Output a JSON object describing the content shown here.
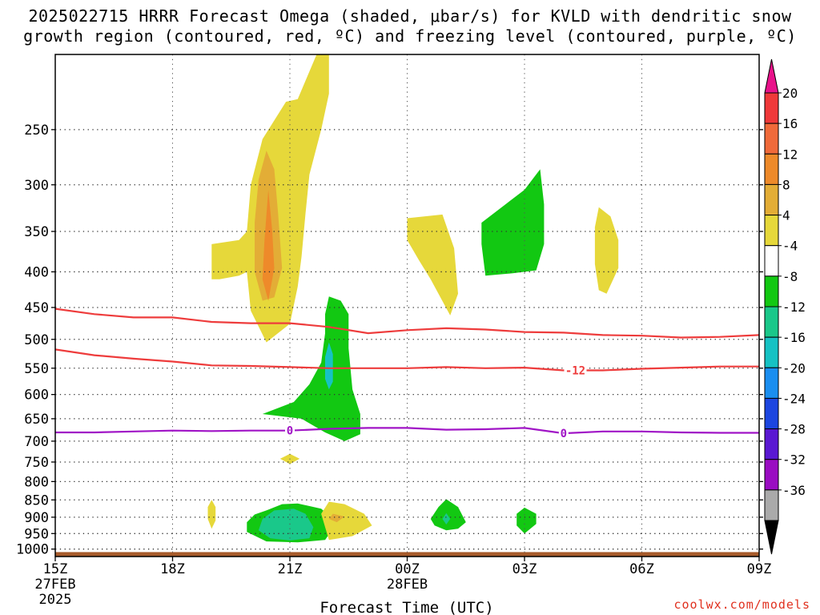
{
  "title_line1": "2025022715 HRRR Forecast Omega (shaded, μbar/s) for KVLD with dendritic snow",
  "title_line2": "growth region (contoured, red, ºC) and freezing level (contoured, purple, ºC)",
  "credit": "coolwx.com/models",
  "chart_data": {
    "type": "area",
    "xlabel": "Forecast Time (UTC)",
    "ylabel": "",
    "x_range": [
      "2025-02-27T15:00Z",
      "2025-02-28T09:00Z"
    ],
    "y_scale": "log",
    "y_range": [
      1025,
      195
    ],
    "x_ticks": [
      {
        "t": 0,
        "label": "15Z",
        "sub1": "27FEB",
        "sub2": "2025"
      },
      {
        "t": 3,
        "label": "18Z",
        "sub1": "",
        "sub2": ""
      },
      {
        "t": 6,
        "label": "21Z",
        "sub1": "",
        "sub2": ""
      },
      {
        "t": 9,
        "label": "00Z",
        "sub1": "28FEB",
        "sub2": ""
      },
      {
        "t": 12,
        "label": "03Z",
        "sub1": "",
        "sub2": ""
      },
      {
        "t": 15,
        "label": "06Z",
        "sub1": "",
        "sub2": ""
      },
      {
        "t": 18,
        "label": "09Z",
        "sub1": "",
        "sub2": ""
      }
    ],
    "y_ticks": [
      250,
      300,
      350,
      400,
      450,
      500,
      550,
      600,
      650,
      700,
      750,
      800,
      850,
      900,
      950,
      1000
    ],
    "grid": true,
    "colorbar": {
      "labels": [
        "20",
        "16",
        "12",
        "8",
        "4",
        "-4",
        "-8",
        "-12",
        "-16",
        "-20",
        "-24",
        "-28",
        "-32",
        "-36"
      ],
      "colors": [
        "#e8128a",
        "#f0393a",
        "#f06a3a",
        "#ee8a2a",
        "#e3ad36",
        "#e6d83a",
        "#ffffff",
        "#12c812",
        "#1ac88a",
        "#16c2c4",
        "#1a8ef0",
        "#1c46e0",
        "#5a18d2",
        "#9a0cc2",
        "#aaaaaa",
        "#000000"
      ]
    },
    "shaded": [
      {
        "value": 4,
        "color": "#e6d83a",
        "points": [
          [
            6.7,
            194
          ],
          [
            7.0,
            194
          ],
          [
            7.0,
            222
          ],
          [
            6.8,
            250
          ],
          [
            6.5,
            290
          ],
          [
            6.4,
            330
          ],
          [
            6.3,
            380
          ],
          [
            6.2,
            420
          ],
          [
            6.0,
            475
          ],
          [
            5.4,
            505
          ],
          [
            5.0,
            455
          ],
          [
            4.9,
            400
          ],
          [
            4.7,
            405
          ],
          [
            4.2,
            410
          ],
          [
            4.0,
            410
          ],
          [
            4.0,
            365
          ],
          [
            4.7,
            360
          ],
          [
            4.9,
            350
          ],
          [
            5.0,
            300
          ],
          [
            5.3,
            258
          ],
          [
            5.9,
            228
          ],
          [
            6.2,
            226
          ]
        ]
      },
      {
        "value": 4,
        "color": "#e6d83a",
        "points": [
          [
            9.0,
            335
          ],
          [
            9.9,
            331
          ],
          [
            10.2,
            370
          ],
          [
            10.3,
            430
          ],
          [
            10.1,
            462
          ],
          [
            9.6,
            410
          ],
          [
            9.3,
            385
          ],
          [
            9.0,
            360
          ]
        ]
      },
      {
        "value": 4,
        "color": "#e6d83a",
        "points": [
          [
            13.9,
            323
          ],
          [
            14.2,
            333
          ],
          [
            14.4,
            360
          ],
          [
            14.4,
            395
          ],
          [
            14.1,
            430
          ],
          [
            13.9,
            425
          ],
          [
            13.8,
            390
          ],
          [
            13.8,
            345
          ]
        ]
      },
      {
        "value": 8,
        "color": "#e3ad36",
        "points": [
          [
            5.4,
            268
          ],
          [
            5.6,
            285
          ],
          [
            5.7,
            330
          ],
          [
            5.8,
            395
          ],
          [
            5.6,
            435
          ],
          [
            5.3,
            440
          ],
          [
            5.1,
            400
          ],
          [
            5.1,
            340
          ],
          [
            5.2,
            295
          ]
        ]
      },
      {
        "value": 12,
        "color": "#ee8a2a",
        "points": [
          [
            5.45,
            305
          ],
          [
            5.55,
            350
          ],
          [
            5.6,
            395
          ],
          [
            5.45,
            440
          ],
          [
            5.3,
            410
          ],
          [
            5.35,
            360
          ]
        ]
      },
      {
        "value": -4,
        "color": "#12c812",
        "points": [
          [
            12.0,
            305
          ],
          [
            12.4,
            285
          ],
          [
            12.5,
            320
          ],
          [
            12.5,
            365
          ],
          [
            12.3,
            398
          ],
          [
            11.7,
            402
          ],
          [
            11.0,
            405
          ],
          [
            10.9,
            365
          ],
          [
            10.9,
            340
          ]
        ]
      },
      {
        "value": -4,
        "color": "#12c812",
        "points": [
          [
            7.0,
            434
          ],
          [
            7.3,
            440
          ],
          [
            7.5,
            460
          ],
          [
            7.5,
            515
          ],
          [
            7.6,
            590
          ],
          [
            7.8,
            640
          ],
          [
            7.8,
            684
          ],
          [
            7.4,
            700
          ],
          [
            6.9,
            680
          ],
          [
            6.3,
            650
          ],
          [
            5.3,
            640
          ],
          [
            6.1,
            615
          ],
          [
            6.5,
            580
          ],
          [
            6.8,
            540
          ],
          [
            6.9,
            490
          ],
          [
            6.9,
            460
          ]
        ]
      },
      {
        "value": -8,
        "color": "#16c2c4",
        "points": [
          [
            7.0,
            505
          ],
          [
            7.1,
            525
          ],
          [
            7.1,
            575
          ],
          [
            7.0,
            590
          ],
          [
            6.9,
            570
          ],
          [
            6.9,
            530
          ]
        ]
      },
      {
        "value": -4,
        "color": "#12c812",
        "points": [
          [
            5.4,
            880
          ],
          [
            5.8,
            862
          ],
          [
            6.2,
            860
          ],
          [
            6.8,
            875
          ],
          [
            7.1,
            905
          ],
          [
            7.1,
            935
          ],
          [
            6.9,
            970
          ],
          [
            6.2,
            978
          ],
          [
            5.4,
            975
          ],
          [
            4.9,
            945
          ],
          [
            4.9,
            915
          ],
          [
            5.1,
            892
          ]
        ]
      },
      {
        "value": -8,
        "color": "#1ac88a",
        "points": [
          [
            5.6,
            880
          ],
          [
            6.1,
            875
          ],
          [
            6.4,
            890
          ],
          [
            6.6,
            930
          ],
          [
            6.5,
            965
          ],
          [
            6.0,
            972
          ],
          [
            5.5,
            965
          ],
          [
            5.2,
            940
          ],
          [
            5.3,
            905
          ]
        ]
      },
      {
        "value": 4,
        "color": "#e6d83a",
        "points": [
          [
            7.0,
            855
          ],
          [
            7.4,
            862
          ],
          [
            7.9,
            890
          ],
          [
            8.1,
            925
          ],
          [
            7.6,
            958
          ],
          [
            7.0,
            970
          ],
          [
            6.9,
            930
          ],
          [
            6.8,
            890
          ]
        ]
      },
      {
        "value": 8,
        "color": "#e3ad36",
        "points": [
          [
            7.1,
            890
          ],
          [
            7.4,
            898
          ],
          [
            7.2,
            915
          ],
          [
            7.0,
            905
          ]
        ]
      },
      {
        "value": 4,
        "color": "#e6d83a",
        "points": [
          [
            4.0,
            850
          ],
          [
            4.1,
            870
          ],
          [
            4.1,
            910
          ],
          [
            4.0,
            935
          ],
          [
            3.9,
            905
          ],
          [
            3.9,
            870
          ]
        ]
      },
      {
        "value": 4,
        "color": "#e6d83a",
        "points": [
          [
            6.0,
            730
          ],
          [
            6.25,
            742
          ],
          [
            6.0,
            755
          ],
          [
            5.75,
            742
          ]
        ]
      },
      {
        "value": -4,
        "color": "#12c812",
        "points": [
          [
            10.0,
            848
          ],
          [
            10.3,
            870
          ],
          [
            10.5,
            915
          ],
          [
            10.3,
            935
          ],
          [
            10.0,
            940
          ],
          [
            9.7,
            925
          ],
          [
            9.6,
            905
          ],
          [
            9.8,
            870
          ]
        ]
      },
      {
        "value": -8,
        "color": "#1ac88a",
        "points": [
          [
            10.0,
            888
          ],
          [
            10.1,
            905
          ],
          [
            10.0,
            922
          ],
          [
            9.9,
            905
          ]
        ]
      },
      {
        "value": -4,
        "color": "#12c812",
        "points": [
          [
            12.0,
            872
          ],
          [
            12.3,
            890
          ],
          [
            12.3,
            920
          ],
          [
            12.0,
            950
          ],
          [
            11.8,
            925
          ],
          [
            11.8,
            890
          ]
        ]
      }
    ],
    "contours": [
      {
        "name": "-8",
        "color": "#ee3c3c",
        "points": [
          [
            0,
            452
          ],
          [
            1,
            460
          ],
          [
            2,
            465
          ],
          [
            3,
            465
          ],
          [
            4,
            472
          ],
          [
            5,
            474
          ],
          [
            6,
            474
          ],
          [
            7,
            480
          ],
          [
            8,
            490
          ],
          [
            9,
            485
          ],
          [
            10,
            482
          ],
          [
            11,
            484
          ],
          [
            12,
            488
          ],
          [
            13,
            489
          ],
          [
            14,
            493
          ],
          [
            15,
            494
          ],
          [
            16,
            497
          ],
          [
            17,
            496
          ],
          [
            18,
            493
          ]
        ]
      },
      {
        "name": "-12",
        "color": "#ee3c3c",
        "label": "-12",
        "label_t": 13.3,
        "points": [
          [
            0,
            517
          ],
          [
            1,
            527
          ],
          [
            2,
            533
          ],
          [
            3,
            538
          ],
          [
            4,
            545
          ],
          [
            5,
            546
          ],
          [
            6,
            548
          ],
          [
            7,
            550
          ],
          [
            8,
            550
          ],
          [
            9,
            550
          ],
          [
            10,
            548
          ],
          [
            11,
            550
          ],
          [
            12,
            549
          ],
          [
            13,
            554
          ],
          [
            14,
            554
          ],
          [
            15,
            551
          ],
          [
            16,
            549
          ],
          [
            17,
            547
          ],
          [
            18,
            547
          ]
        ]
      },
      {
        "name": "0",
        "color": "#a014c6",
        "label": "0",
        "label_t": 6.0,
        "label2_t": 13.0,
        "points": [
          [
            0,
            680
          ],
          [
            1,
            680
          ],
          [
            2,
            678
          ],
          [
            3,
            676
          ],
          [
            4,
            677
          ],
          [
            5,
            676
          ],
          [
            6,
            676
          ],
          [
            7,
            672
          ],
          [
            8,
            670
          ],
          [
            9,
            670
          ],
          [
            10,
            674
          ],
          [
            11,
            673
          ],
          [
            12,
            670
          ],
          [
            13,
            682
          ],
          [
            14,
            678
          ],
          [
            15,
            678
          ],
          [
            16,
            680
          ],
          [
            17,
            681
          ],
          [
            18,
            681
          ]
        ]
      }
    ],
    "terrain": {
      "color": "#a65a2a",
      "top_pressure": 1010
    }
  }
}
